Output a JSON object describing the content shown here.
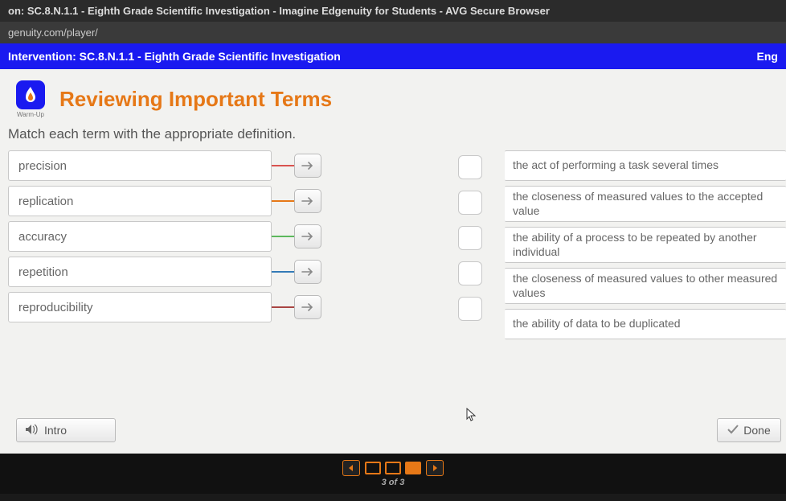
{
  "browser": {
    "tab_title": "on: SC.8.N.1.1 - Eighth Grade Scientific Investigation - Imagine Edgenuity for Students - AVG Secure Browser",
    "url": "genuity.com/player/"
  },
  "blue_bar": {
    "left": "Intervention: SC.8.N.1.1 - Eighth Grade Scientific Investigation",
    "right": "Eng"
  },
  "header": {
    "badge_label": "Warm-Up",
    "title": "Reviewing Important Terms"
  },
  "instruction": "Match each term with the appropriate definition.",
  "terms": [
    {
      "label": "precision",
      "connector_color": "#d9534f"
    },
    {
      "label": "replication",
      "connector_color": "#e67817"
    },
    {
      "label": "accuracy",
      "connector_color": "#5cb85c"
    },
    {
      "label": "repetition",
      "connector_color": "#337ab7"
    },
    {
      "label": "reproducibility",
      "connector_color": "#a94442"
    }
  ],
  "definitions": [
    "the act of performing a task several times",
    "the closeness of measured values to the accepted value",
    "the ability of a process to be repeated by another individual",
    "the closeness of measured values to other measured values",
    "the ability of data to be duplicated"
  ],
  "footer": {
    "intro_label": "Intro",
    "done_label": "Done"
  },
  "nav": {
    "counter": "3 of 3",
    "pages": [
      false,
      false,
      true
    ]
  },
  "colors": {
    "blue_bar": "#1a1af0",
    "title": "#e67817",
    "content_bg": "#f2f2f0"
  }
}
